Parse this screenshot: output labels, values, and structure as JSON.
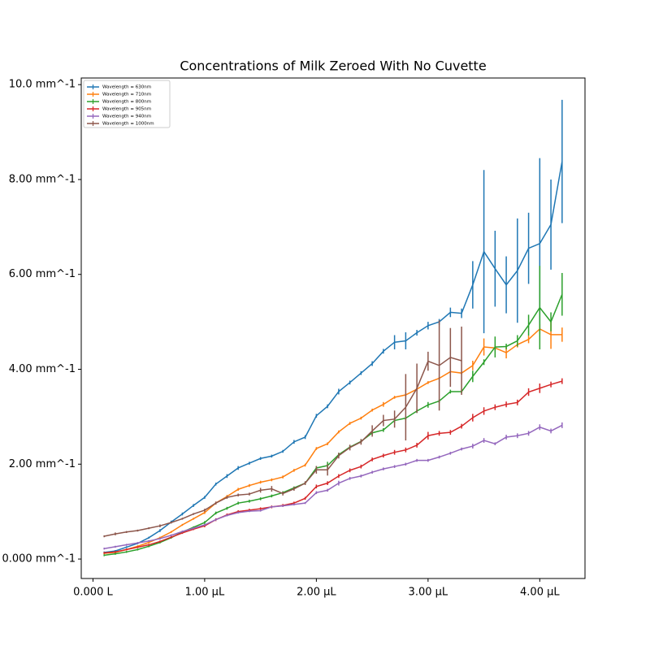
{
  "chart_data": {
    "type": "line",
    "title": "Concentrations of Milk Zeroed With No Cuvette",
    "x": [
      0.1,
      0.2,
      0.3,
      0.4,
      0.5,
      0.6,
      0.7,
      0.8,
      0.9,
      1.0,
      1.1,
      1.2,
      1.3,
      1.4,
      1.5,
      1.6,
      1.7,
      1.8,
      1.9,
      2.0,
      2.1,
      2.2,
      2.3,
      2.4,
      2.5,
      2.6,
      2.7,
      2.8,
      2.9,
      3.0,
      3.1,
      3.2,
      3.3,
      3.4,
      3.5,
      3.6,
      3.7,
      3.8,
      3.9,
      4.0,
      4.1,
      4.2
    ],
    "series": [
      {
        "name": "Wavelength = 630nm",
        "color": "#1f77b4",
        "values": [
          0.14,
          0.17,
          0.25,
          0.33,
          0.45,
          0.6,
          0.78,
          0.95,
          1.13,
          1.3,
          1.58,
          1.75,
          1.92,
          2.02,
          2.12,
          2.17,
          2.27,
          2.47,
          2.57,
          3.02,
          3.22,
          3.53,
          3.72,
          3.92,
          4.12,
          4.38,
          4.57,
          4.6,
          4.77,
          4.92,
          5.0,
          5.2,
          5.18,
          5.78,
          6.48,
          6.12,
          5.78,
          6.08,
          6.55,
          6.65,
          7.05,
          8.38
        ],
        "errors": [
          0.02,
          0.02,
          0.02,
          0.02,
          0.02,
          0.03,
          0.03,
          0.03,
          0.03,
          0.03,
          0.03,
          0.04,
          0.04,
          0.03,
          0.03,
          0.03,
          0.03,
          0.04,
          0.04,
          0.04,
          0.04,
          0.06,
          0.04,
          0.04,
          0.05,
          0.05,
          0.15,
          0.18,
          0.06,
          0.08,
          0.06,
          0.1,
          0.1,
          0.5,
          1.72,
          0.8,
          0.6,
          1.1,
          0.75,
          1.8,
          0.95,
          1.3
        ]
      },
      {
        "name": "Wavelength = 710nm",
        "color": "#ff7f0e",
        "values": [
          0.12,
          0.14,
          0.2,
          0.27,
          0.35,
          0.45,
          0.57,
          0.72,
          0.85,
          0.98,
          1.18,
          1.32,
          1.47,
          1.55,
          1.62,
          1.67,
          1.73,
          1.87,
          1.98,
          2.33,
          2.43,
          2.68,
          2.86,
          2.97,
          3.14,
          3.26,
          3.41,
          3.46,
          3.58,
          3.72,
          3.81,
          3.95,
          3.92,
          4.08,
          4.47,
          4.45,
          4.35,
          4.52,
          4.63,
          4.85,
          4.73,
          4.73
        ],
        "errors": [
          0.02,
          0.02,
          0.02,
          0.02,
          0.02,
          0.02,
          0.02,
          0.02,
          0.02,
          0.03,
          0.03,
          0.03,
          0.03,
          0.03,
          0.03,
          0.03,
          0.03,
          0.03,
          0.03,
          0.03,
          0.03,
          0.03,
          0.03,
          0.03,
          0.03,
          0.05,
          0.03,
          0.03,
          0.03,
          0.03,
          0.03,
          0.03,
          0.03,
          0.1,
          0.18,
          0.06,
          0.12,
          0.06,
          0.08,
          0.1,
          0.3,
          0.15
        ]
      },
      {
        "name": "Wavelength = 800nm",
        "color": "#2ca02c",
        "values": [
          0.08,
          0.11,
          0.15,
          0.2,
          0.27,
          0.35,
          0.45,
          0.57,
          0.67,
          0.77,
          0.97,
          1.07,
          1.18,
          1.22,
          1.27,
          1.33,
          1.4,
          1.5,
          1.6,
          1.92,
          1.97,
          2.2,
          2.36,
          2.48,
          2.66,
          2.72,
          2.92,
          2.97,
          3.12,
          3.25,
          3.33,
          3.53,
          3.53,
          3.85,
          4.15,
          4.47,
          4.48,
          4.6,
          4.93,
          5.3,
          5.0,
          5.58
        ],
        "errors": [
          0.02,
          0.02,
          0.02,
          0.02,
          0.02,
          0.02,
          0.02,
          0.02,
          0.02,
          0.03,
          0.03,
          0.03,
          0.03,
          0.03,
          0.03,
          0.03,
          0.03,
          0.03,
          0.03,
          0.04,
          0.08,
          0.04,
          0.04,
          0.04,
          0.04,
          0.04,
          0.04,
          0.04,
          0.04,
          0.06,
          0.04,
          0.04,
          0.04,
          0.12,
          0.06,
          0.22,
          0.06,
          0.12,
          0.22,
          0.88,
          0.2,
          0.45
        ]
      },
      {
        "name": "Wavelength = 905nm",
        "color": "#d62728",
        "values": [
          0.13,
          0.15,
          0.2,
          0.25,
          0.3,
          0.37,
          0.46,
          0.55,
          0.63,
          0.7,
          0.83,
          0.93,
          1.0,
          1.03,
          1.06,
          1.1,
          1.13,
          1.18,
          1.28,
          1.53,
          1.6,
          1.75,
          1.87,
          1.95,
          2.1,
          2.18,
          2.25,
          2.3,
          2.4,
          2.6,
          2.65,
          2.67,
          2.8,
          2.98,
          3.12,
          3.2,
          3.26,
          3.3,
          3.52,
          3.6,
          3.68,
          3.75
        ],
        "errors": [
          0.02,
          0.02,
          0.02,
          0.02,
          0.02,
          0.02,
          0.02,
          0.02,
          0.02,
          0.03,
          0.03,
          0.03,
          0.03,
          0.03,
          0.03,
          0.03,
          0.03,
          0.03,
          0.03,
          0.04,
          0.04,
          0.04,
          0.04,
          0.04,
          0.04,
          0.04,
          0.05,
          0.05,
          0.05,
          0.08,
          0.05,
          0.05,
          0.05,
          0.08,
          0.08,
          0.06,
          0.06,
          0.06,
          0.08,
          0.1,
          0.06,
          0.06
        ]
      },
      {
        "name": "Wavelength = 940nm",
        "color": "#9467bd",
        "values": [
          0.22,
          0.26,
          0.3,
          0.34,
          0.38,
          0.43,
          0.5,
          0.58,
          0.65,
          0.72,
          0.83,
          0.92,
          0.98,
          1.01,
          1.02,
          1.1,
          1.12,
          1.15,
          1.18,
          1.4,
          1.45,
          1.6,
          1.7,
          1.75,
          1.83,
          1.9,
          1.95,
          2.0,
          2.08,
          2.08,
          2.15,
          2.23,
          2.32,
          2.38,
          2.5,
          2.43,
          2.57,
          2.6,
          2.65,
          2.78,
          2.7,
          2.82
        ],
        "errors": [
          0.02,
          0.02,
          0.02,
          0.02,
          0.02,
          0.02,
          0.02,
          0.02,
          0.02,
          0.02,
          0.02,
          0.02,
          0.02,
          0.02,
          0.02,
          0.02,
          0.02,
          0.02,
          0.02,
          0.03,
          0.03,
          0.05,
          0.03,
          0.03,
          0.03,
          0.03,
          0.03,
          0.03,
          0.03,
          0.03,
          0.03,
          0.03,
          0.03,
          0.05,
          0.05,
          0.03,
          0.05,
          0.05,
          0.05,
          0.06,
          0.05,
          0.06
        ]
      },
      {
        "name": "Wavelength = 1000nm",
        "color": "#8c564b",
        "values": [
          0.48,
          0.53,
          0.57,
          0.6,
          0.65,
          0.7,
          0.77,
          0.85,
          0.95,
          1.03,
          1.18,
          1.3,
          1.35,
          1.37,
          1.45,
          1.48,
          1.38,
          1.48,
          1.6,
          1.88,
          1.88,
          2.18,
          2.35,
          2.47,
          2.7,
          2.92,
          2.95,
          3.2,
          3.6,
          4.17,
          4.08,
          4.25,
          4.18,
          null,
          null,
          null,
          null,
          null,
          null,
          null,
          null,
          null
        ],
        "errors": [
          0.02,
          0.03,
          0.02,
          0.02,
          0.02,
          0.03,
          0.02,
          0.02,
          0.02,
          0.03,
          0.03,
          0.03,
          0.03,
          0.03,
          0.05,
          0.06,
          0.04,
          0.04,
          0.04,
          0.08,
          0.12,
          0.06,
          0.06,
          0.06,
          0.12,
          0.12,
          0.18,
          0.7,
          0.52,
          0.2,
          0.95,
          0.62,
          0.72,
          null,
          null,
          null,
          null,
          null,
          null,
          null,
          null,
          null
        ]
      }
    ],
    "xlim": [
      -0.105,
      4.405
    ],
    "ylim": [
      -0.41,
      10.14
    ],
    "xticks": [
      {
        "value": 0,
        "label": "0.000 L"
      },
      {
        "value": 1,
        "label": "1.00 µL"
      },
      {
        "value": 2,
        "label": "2.00 µL"
      },
      {
        "value": 3,
        "label": "3.00 µL"
      },
      {
        "value": 4,
        "label": "4.00 µL"
      }
    ],
    "yticks": [
      {
        "value": 0,
        "label": "0.000 mm^-1"
      },
      {
        "value": 2,
        "label": "2.00 mm^-1"
      },
      {
        "value": 4,
        "label": "4.00 mm^-1"
      },
      {
        "value": 6,
        "label": "6.00 mm^-1"
      },
      {
        "value": 8,
        "label": "8.00 mm^-1"
      },
      {
        "value": 10,
        "label": "10.0 mm^-1"
      }
    ],
    "legend": "upper left",
    "grid": false
  }
}
